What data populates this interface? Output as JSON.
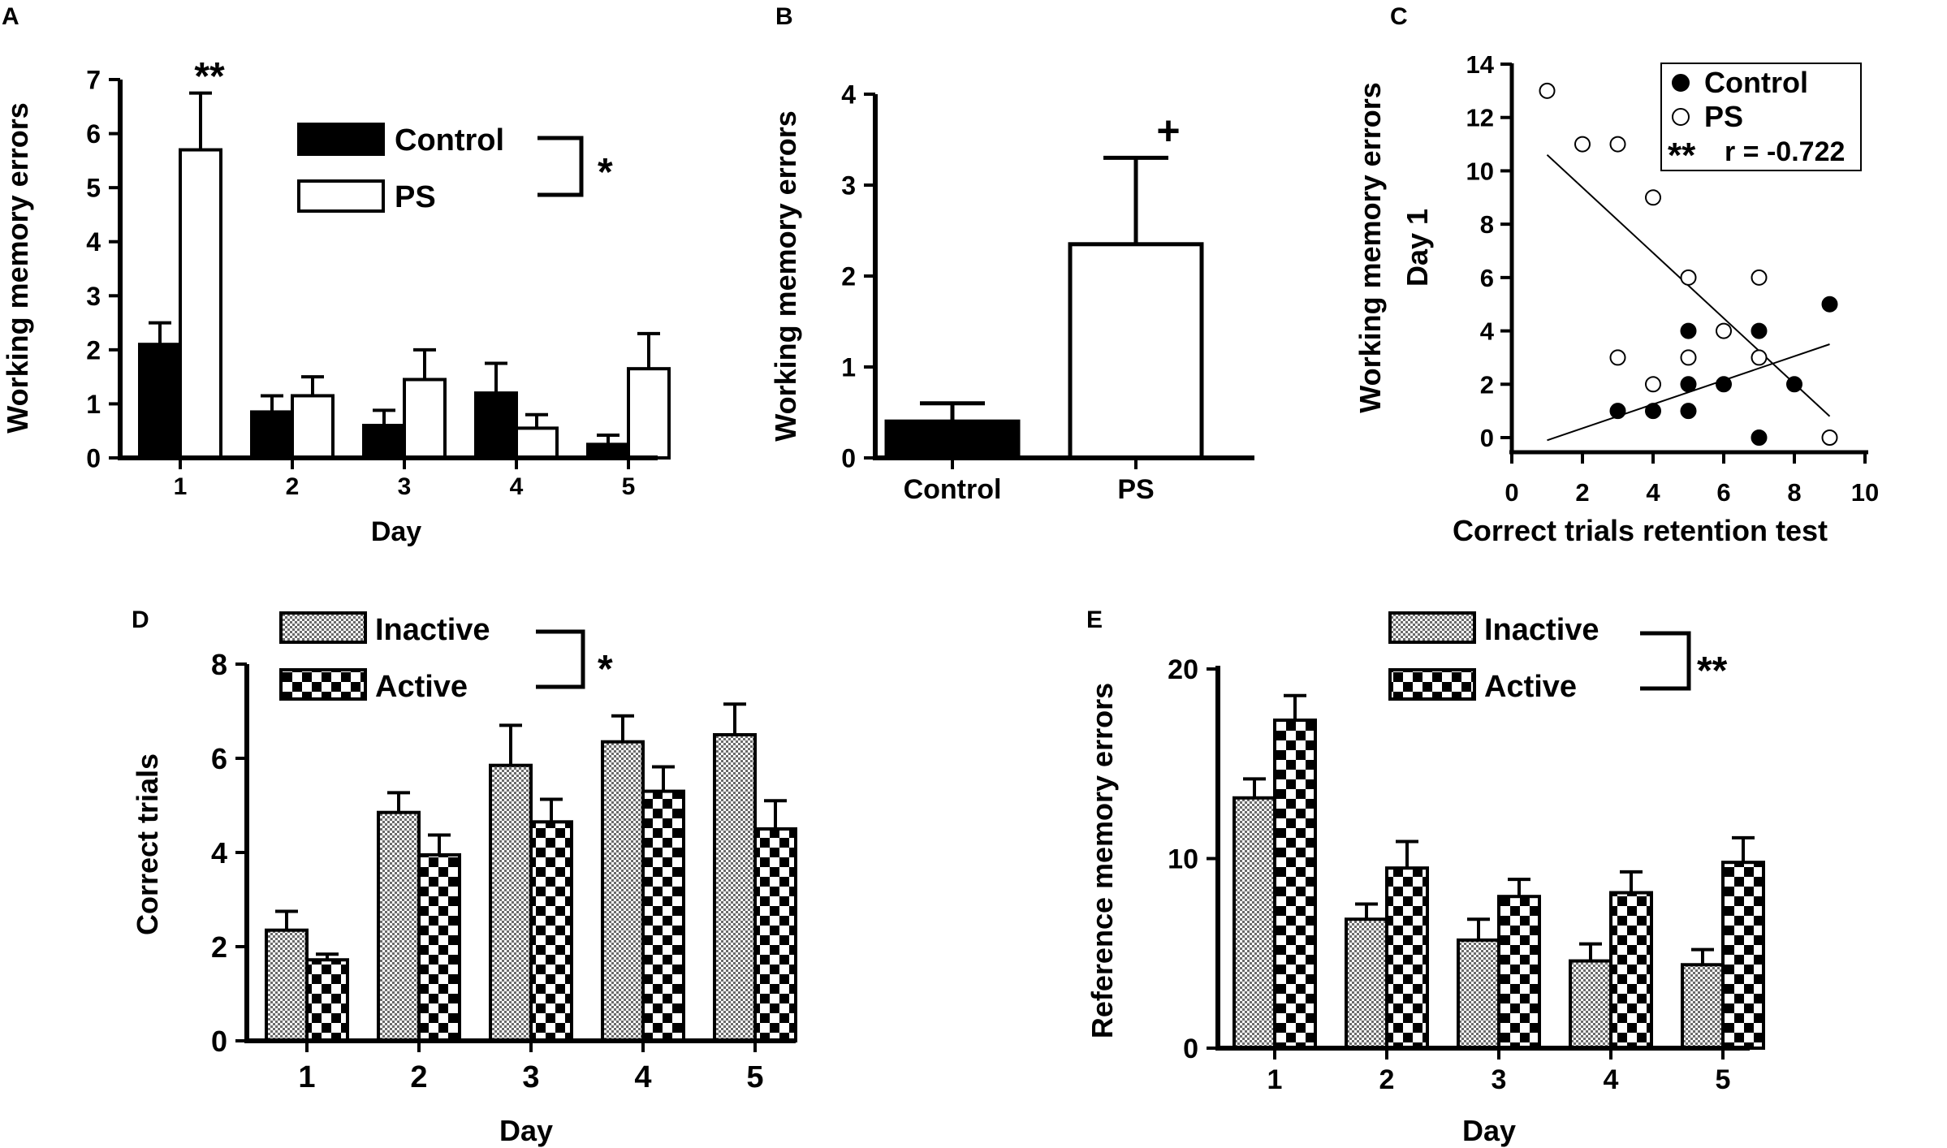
{
  "figure": {
    "colors": {
      "ink": "#000000",
      "paper": "#ffffff"
    },
    "patterns": {
      "inactive": "fine-dot-check",
      "active": "coarse-checkerboard"
    }
  },
  "chart_data": [
    {
      "panel": "A",
      "type": "bar",
      "xlabel": "Day",
      "ylabel": "Working memory errors",
      "ylim": [
        0,
        7
      ],
      "yticks": [
        0,
        1,
        2,
        3,
        4,
        5,
        6,
        7
      ],
      "categories": [
        "1",
        "2",
        "3",
        "4",
        "5"
      ],
      "series": [
        {
          "name": "Control",
          "fill": "solid-black",
          "values": [
            2.1,
            0.85,
            0.6,
            1.2,
            0.25
          ],
          "errors": [
            0.4,
            0.3,
            0.28,
            0.55,
            0.17
          ]
        },
        {
          "name": "PS",
          "fill": "white",
          "values": [
            5.7,
            1.15,
            1.45,
            0.55,
            1.65
          ],
          "errors": [
            1.05,
            0.35,
            0.55,
            0.25,
            0.65
          ]
        }
      ],
      "legend_position": "top-right",
      "significance": {
        "group": "*",
        "day1": "**"
      }
    },
    {
      "panel": "B",
      "type": "bar",
      "xlabel": "",
      "ylabel": "Working memory errors",
      "ylim": [
        0,
        4
      ],
      "yticks": [
        0,
        1,
        2,
        3,
        4
      ],
      "categories": [
        "Control",
        "PS"
      ],
      "values": [
        0.4,
        2.35
      ],
      "errors": [
        0.2,
        0.95
      ],
      "fills": [
        "solid-black",
        "white"
      ],
      "significance": {
        "ps": "+"
      }
    },
    {
      "panel": "C",
      "type": "scatter",
      "xlabel": "Correct  trials  retention  test",
      "ylabel_lines": [
        "Working  memory  errors",
        "Day 1"
      ],
      "xlim": [
        0,
        10
      ],
      "ylim": [
        0,
        14
      ],
      "xticks": [
        0,
        2,
        4,
        6,
        8,
        10
      ],
      "yticks": [
        0,
        2,
        4,
        6,
        8,
        10,
        12,
        14
      ],
      "series": [
        {
          "name": "Control",
          "marker": "filled-circle",
          "points": [
            [
              3,
              1
            ],
            [
              4,
              1
            ],
            [
              5,
              1
            ],
            [
              5,
              2
            ],
            [
              5,
              4
            ],
            [
              6,
              2
            ],
            [
              7,
              4
            ],
            [
              7,
              0
            ],
            [
              8,
              2
            ],
            [
              9,
              5
            ]
          ]
        },
        {
          "name": "PS",
          "marker": "open-circle",
          "points": [
            [
              1,
              13
            ],
            [
              2,
              11
            ],
            [
              3,
              11
            ],
            [
              4,
              9
            ],
            [
              3,
              3
            ],
            [
              4,
              2
            ],
            [
              5,
              6
            ],
            [
              5,
              3
            ],
            [
              6,
              4
            ],
            [
              7,
              6
            ],
            [
              7,
              3
            ],
            [
              9,
              0
            ]
          ]
        }
      ],
      "fit_lines": [
        {
          "series": "Control",
          "from": [
            1,
            -0.1
          ],
          "to": [
            9,
            3.5
          ]
        },
        {
          "series": "PS",
          "from": [
            1,
            10.6
          ],
          "to": [
            9,
            0.8
          ]
        }
      ],
      "annotation": {
        "stars": "**",
        "text": "r = -0.722"
      },
      "legend_position": "top-right"
    },
    {
      "panel": "D",
      "type": "bar",
      "xlabel": "Day",
      "ylabel": "Correct  trials",
      "ylim": [
        0,
        8
      ],
      "yticks": [
        0,
        2,
        4,
        6,
        8
      ],
      "categories": [
        "1",
        "2",
        "3",
        "4",
        "5"
      ],
      "series": [
        {
          "name": "Inactive",
          "fill": "inactive",
          "values": [
            2.35,
            4.85,
            5.85,
            6.35,
            6.5
          ],
          "errors": [
            0.4,
            0.42,
            0.85,
            0.55,
            0.65
          ]
        },
        {
          "name": "Active",
          "fill": "active",
          "values": [
            1.72,
            3.95,
            4.65,
            5.3,
            4.5
          ],
          "errors": [
            0.12,
            0.42,
            0.48,
            0.52,
            0.6
          ]
        }
      ],
      "legend_position": "top-center",
      "significance": {
        "group": "*"
      }
    },
    {
      "panel": "E",
      "type": "bar",
      "xlabel": "Day",
      "ylabel": "Reference  memory  errors",
      "ylim": [
        0,
        20
      ],
      "yticks": [
        0,
        10,
        20
      ],
      "categories": [
        "1",
        "2",
        "3",
        "4",
        "5"
      ],
      "series": [
        {
          "name": "Inactive",
          "fill": "inactive",
          "values": [
            13.2,
            6.8,
            5.7,
            4.6,
            4.4
          ],
          "errors": [
            1.0,
            0.8,
            1.1,
            0.9,
            0.8
          ]
        },
        {
          "name": "Active",
          "fill": "active",
          "values": [
            17.3,
            9.5,
            8.0,
            8.2,
            9.8
          ],
          "errors": [
            1.3,
            1.4,
            0.9,
            1.1,
            1.3
          ]
        }
      ],
      "legend_position": "top-center",
      "significance": {
        "group": "**"
      }
    }
  ]
}
